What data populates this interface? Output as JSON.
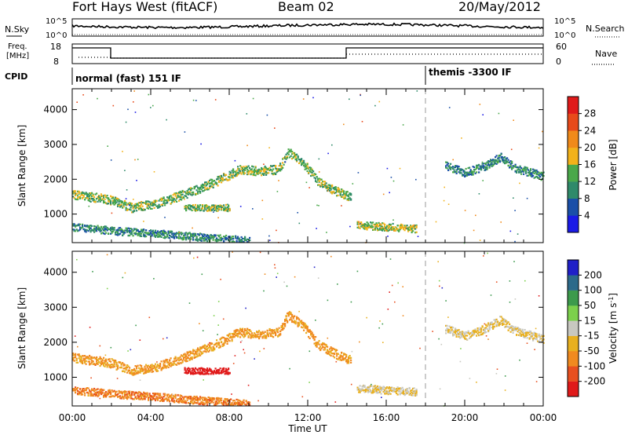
{
  "header": {
    "station": "Fort Hays West (fitACF)",
    "beam": "Beam 02",
    "date": "20/May/2012"
  },
  "noise_panel": {
    "left_label": "N.Sky",
    "right_label": "N.Search",
    "left_ticks": [
      "10^5",
      "10^0"
    ],
    "right_ticks": [
      "10^5",
      "10^0"
    ]
  },
  "freq_panel": {
    "left_label_line1": "Freq.",
    "left_label_line2": "[MHz]",
    "left_ticks": [
      "18",
      "8"
    ],
    "right_label": "Nave",
    "right_ticks": [
      "60",
      "0"
    ]
  },
  "cpid": {
    "label": "CPID",
    "segments": [
      {
        "start_h": 0,
        "end_h": 18,
        "text": "normal (fast) 151 IF"
      },
      {
        "start_h": 18,
        "end_h": 24,
        "text": "themis -3300 IF"
      }
    ]
  },
  "x_axis": {
    "label": "Time UT",
    "ticks": [
      "00:00",
      "04:00",
      "08:00",
      "12:00",
      "16:00",
      "20:00",
      "00:00"
    ]
  },
  "colors": {
    "power": [
      "#1a1ae6",
      "#1a4fa8",
      "#2f8a6a",
      "#4aa84a",
      "#f2b21a",
      "#f08a1a",
      "#e84a1a",
      "#e01a1a"
    ],
    "velocity": [
      "#2020c8",
      "#2c6a8a",
      "#3c9a4c",
      "#7cd04c",
      "#c8c8c0",
      "#e8b020",
      "#f08a20",
      "#e85020",
      "#e01a1a"
    ]
  },
  "chart_data": [
    {
      "type": "heatmap",
      "title": "Power",
      "ylabel": "Slant Range [km]",
      "xlabel": "",
      "xlim": [
        0,
        24
      ],
      "ylim": [
        180,
        4600
      ],
      "yticks": [
        1000,
        2000,
        3000,
        4000
      ],
      "colorbar": {
        "label": "Power [dB]",
        "ticks": [
          "4",
          "8",
          "12",
          "16",
          "20",
          "24",
          "28"
        ],
        "range": [
          0,
          32
        ]
      },
      "features": [
        {
          "name": "band_low",
          "points": [
            [
              0,
              650
            ],
            [
              2,
              540
            ],
            [
              4,
              470
            ],
            [
              6,
              380
            ],
            [
              8,
              300
            ],
            [
              9,
              250
            ]
          ],
          "width": 220,
          "value": 10
        },
        {
          "name": "band_upper",
          "points": [
            [
              0,
              1580
            ],
            [
              2,
              1420
            ],
            [
              3,
              1200
            ],
            [
              4.5,
              1350
            ],
            [
              6,
              1650
            ],
            [
              7.5,
              2000
            ],
            [
              8.5,
              2300
            ],
            [
              9.5,
              2250
            ],
            [
              10.5,
              2300
            ],
            [
              11,
              2800
            ],
            [
              11.8,
              2450
            ],
            [
              12.5,
              1950
            ],
            [
              13.5,
              1650
            ],
            [
              14.2,
              1500
            ]
          ],
          "width": 260,
          "value": 14
        },
        {
          "name": "patch_07h",
          "points": [
            [
              5.7,
              1200
            ],
            [
              8,
              1200
            ]
          ],
          "width": 180,
          "value": 14
        },
        {
          "name": "patch_17h",
          "points": [
            [
              14.5,
              700
            ],
            [
              17.5,
              600
            ]
          ],
          "width": 220,
          "value": 16
        },
        {
          "name": "band_late",
          "points": [
            [
              19,
              2400
            ],
            [
              20,
              2200
            ],
            [
              21,
              2400
            ],
            [
              21.8,
              2650
            ],
            [
              22.5,
              2350
            ],
            [
              24,
              2100
            ]
          ],
          "width": 240,
          "value": 10
        }
      ]
    },
    {
      "type": "heatmap",
      "title": "Velocity",
      "ylabel": "Slant Range [km]",
      "xlabel": "Time UT",
      "xlim": [
        0,
        24
      ],
      "ylim": [
        180,
        4600
      ],
      "yticks": [
        1000,
        2000,
        3000,
        4000
      ],
      "colorbar": {
        "label": "Velocity [m s^-1]",
        "ticks": [
          "200",
          "100",
          "50",
          "15",
          "-15",
          "-50",
          "-100",
          "-200"
        ],
        "range": [
          -250,
          250
        ]
      },
      "features": [
        {
          "name": "band_low",
          "points": [
            [
              0,
              650
            ],
            [
              2,
              540
            ],
            [
              4,
              470
            ],
            [
              6,
              380
            ],
            [
              8,
              300
            ],
            [
              9,
              250
            ]
          ],
          "width": 220,
          "value": -60
        },
        {
          "name": "band_upper",
          "points": [
            [
              0,
              1580
            ],
            [
              2,
              1420
            ],
            [
              3,
              1200
            ],
            [
              4.5,
              1350
            ],
            [
              6,
              1650
            ],
            [
              7.5,
              2000
            ],
            [
              8.5,
              2300
            ],
            [
              9.5,
              2250
            ],
            [
              10.5,
              2300
            ],
            [
              11,
              2800
            ],
            [
              11.8,
              2450
            ],
            [
              12.5,
              1950
            ],
            [
              13.5,
              1650
            ],
            [
              14.2,
              1500
            ]
          ],
          "width": 260,
          "value": -40
        },
        {
          "name": "patch_07h",
          "points": [
            [
              5.7,
              1200
            ],
            [
              8,
              1200
            ]
          ],
          "width": 180,
          "value": -180
        },
        {
          "name": "patch_17h",
          "points": [
            [
              14.5,
              700
            ],
            [
              17.5,
              600
            ]
          ],
          "width": 220,
          "value": 0
        },
        {
          "name": "band_late",
          "points": [
            [
              19,
              2400
            ],
            [
              20,
              2200
            ],
            [
              21,
              2400
            ],
            [
              21.8,
              2650
            ],
            [
              22.5,
              2350
            ],
            [
              24,
              2100
            ]
          ],
          "width": 240,
          "value": 0
        }
      ]
    }
  ]
}
